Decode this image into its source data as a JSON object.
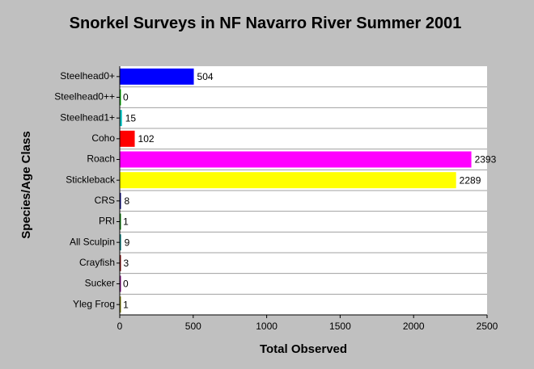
{
  "chart_data": {
    "type": "hbar",
    "title": "Snorkel Surveys in NF Navarro River Summer 2001",
    "x_label": "Total Observed",
    "y_label": "Species/Age Class",
    "categories": [
      "Steelhead0+",
      "Steelhead0++",
      "Steelhead1+",
      "Coho",
      "Roach",
      "Stickleback",
      "CRS",
      "PRI",
      "All Sculpin",
      "Crayfish",
      "Sucker",
      "Yleg Frog"
    ],
    "values": [
      504,
      0,
      15,
      102,
      2393,
      2289,
      8,
      1,
      9,
      3,
      0,
      1
    ],
    "colors": [
      "#0000ff",
      "#00c000",
      "#00c0c0",
      "#ff0000",
      "#ff00ff",
      "#ffff00",
      "#000080",
      "#008000",
      "#008080",
      "#800000",
      "#800080",
      "#808000"
    ],
    "xlim": [
      0,
      2500
    ],
    "xticks": [
      0,
      500,
      1000,
      1500,
      2000,
      2500
    ]
  }
}
